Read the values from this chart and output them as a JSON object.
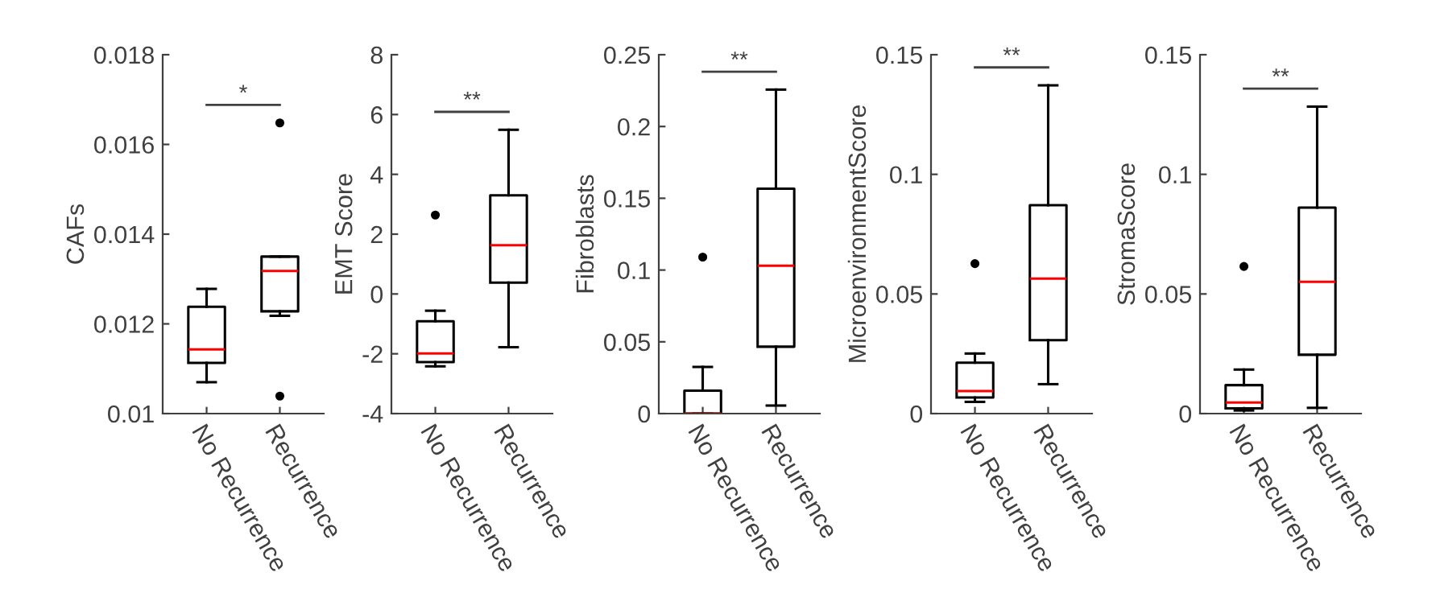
{
  "chart_data": [
    {
      "type": "box",
      "ylabel": "CAFs",
      "categories": [
        "No Recurrence",
        "Recurrence"
      ],
      "ylim": [
        0.01,
        0.018
      ],
      "yticks": [
        0.01,
        0.012,
        0.014,
        0.016,
        0.018
      ],
      "grid": false,
      "color": "#000000",
      "boxes": [
        {
          "low": 0.0107,
          "q1": 0.01113,
          "median": 0.01143,
          "q3": 0.01238,
          "high": 0.01278
        },
        {
          "low": 0.01218,
          "q1": 0.01228,
          "median": 0.01318,
          "q3": 0.0135,
          "high": 0.0135,
          "outliers": [
            0.01648,
            0.01039
          ]
        }
      ],
      "annotations": [
        "*"
      ]
    },
    {
      "type": "box",
      "ylabel": "EMT Score",
      "categories": [
        "No Recurrence",
        "Recurrence"
      ],
      "ylim": [
        -4,
        8
      ],
      "yticks": [
        -4,
        -2,
        0,
        2,
        4,
        6,
        8
      ],
      "grid": false,
      "color": "#000000",
      "boxes": [
        {
          "low": -2.42,
          "q1": -2.28,
          "median": -1.99,
          "q3": -0.91,
          "high": -0.56,
          "outliers": [
            2.64
          ]
        },
        {
          "low": -1.78,
          "q1": 0.38,
          "median": 1.63,
          "q3": 3.3,
          "high": 5.49
        }
      ],
      "annotations": [
        "**"
      ]
    },
    {
      "type": "box",
      "ylabel": "Fibroblasts",
      "categories": [
        "No Recurrence",
        "Recurrence"
      ],
      "ylim": [
        0,
        0.25
      ],
      "yticks": [
        0,
        0.05,
        0.1,
        0.15,
        0.2,
        0.25
      ],
      "grid": false,
      "color": "#000000",
      "boxes": [
        {
          "low": 0,
          "q1": 0,
          "median": 0,
          "q3": 0.016,
          "high": 0.0325,
          "outliers": [
            0.109
          ]
        },
        {
          "low": 0.0056,
          "q1": 0.0466,
          "median": 0.103,
          "q3": 0.1567,
          "high": 0.2257
        }
      ],
      "annotations": [
        "**"
      ]
    },
    {
      "type": "box",
      "ylabel": "MicroenvironmentScore",
      "categories": [
        "No Recurrence",
        "Recurrence"
      ],
      "ylim": [
        0,
        0.15
      ],
      "yticks": [
        0,
        0.05,
        0.1,
        0.15
      ],
      "grid": false,
      "color": "#000000",
      "boxes": [
        {
          "low": 0.0049,
          "q1": 0.0067,
          "median": 0.0094,
          "q3": 0.0213,
          "high": 0.0251,
          "outliers": [
            0.0627
          ]
        },
        {
          "low": 0.0123,
          "q1": 0.0307,
          "median": 0.0564,
          "q3": 0.0871,
          "high": 0.1372
        }
      ],
      "annotations": [
        "**"
      ]
    },
    {
      "type": "box",
      "ylabel": "StromaScore",
      "categories": [
        "No Recurrence",
        "Recurrence"
      ],
      "ylim": [
        0,
        0.15
      ],
      "yticks": [
        0,
        0.05,
        0.1,
        0.15
      ],
      "grid": false,
      "color": "#000000",
      "boxes": [
        {
          "low": 0.0013,
          "q1": 0.0022,
          "median": 0.0046,
          "q3": 0.0119,
          "high": 0.0184,
          "outliers": [
            0.0615
          ]
        },
        {
          "low": 0.0024,
          "q1": 0.0246,
          "median": 0.0551,
          "q3": 0.0861,
          "high": 0.1283
        }
      ],
      "annotations": [
        "**"
      ]
    }
  ]
}
